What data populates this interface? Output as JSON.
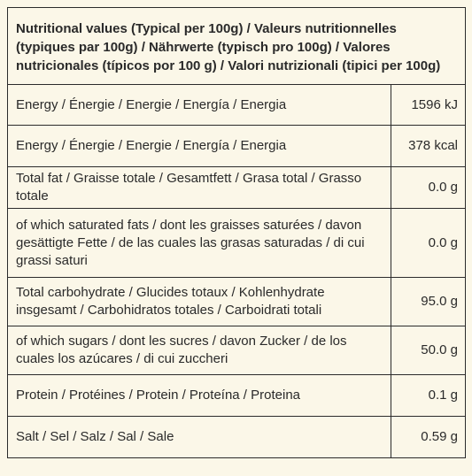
{
  "header": "Nutritional values (Typical per 100g) / Valeurs nutritionnelles (typiques par 100g) / Nährwerte (typisch pro 100g) / Valores nutricionales (típicos por 100 g) / Valori nutrizionali (tipici per 100g)",
  "rows": [
    {
      "label": "Energy / Énergie / Energie / Energía / Energia",
      "value": "1596 kJ"
    },
    {
      "label": "Energy / Énergie / Energie / Energía / Energia",
      "value": "378 kcal"
    },
    {
      "label": "Total fat / Graisse totale / Gesamtfett / Grasa total / Grasso totale",
      "value": "0.0 g"
    },
    {
      "label": "of which saturated fats / dont les graisses saturées / davon gesättigte Fette / de las cuales las grasas saturadas / di cui grassi saturi",
      "value": "0.0 g"
    },
    {
      "label": "Total carbohydrate / Glucides totaux / Kohlenhydrate insgesamt / Carbohidratos totales / Carboidrati totali",
      "value": "95.0 g"
    },
    {
      "label": "of which sugars / dont les sucres / davon Zucker / de los cuales los azúcares / di cui zuccheri",
      "value": "50.0 g"
    },
    {
      "label": "Protein / Protéines / Protein / Proteína / Proteina",
      "value": "0.1 g"
    },
    {
      "label": "Salt / Sel / Salz / Sal / Sale",
      "value": "0.59 g"
    }
  ]
}
